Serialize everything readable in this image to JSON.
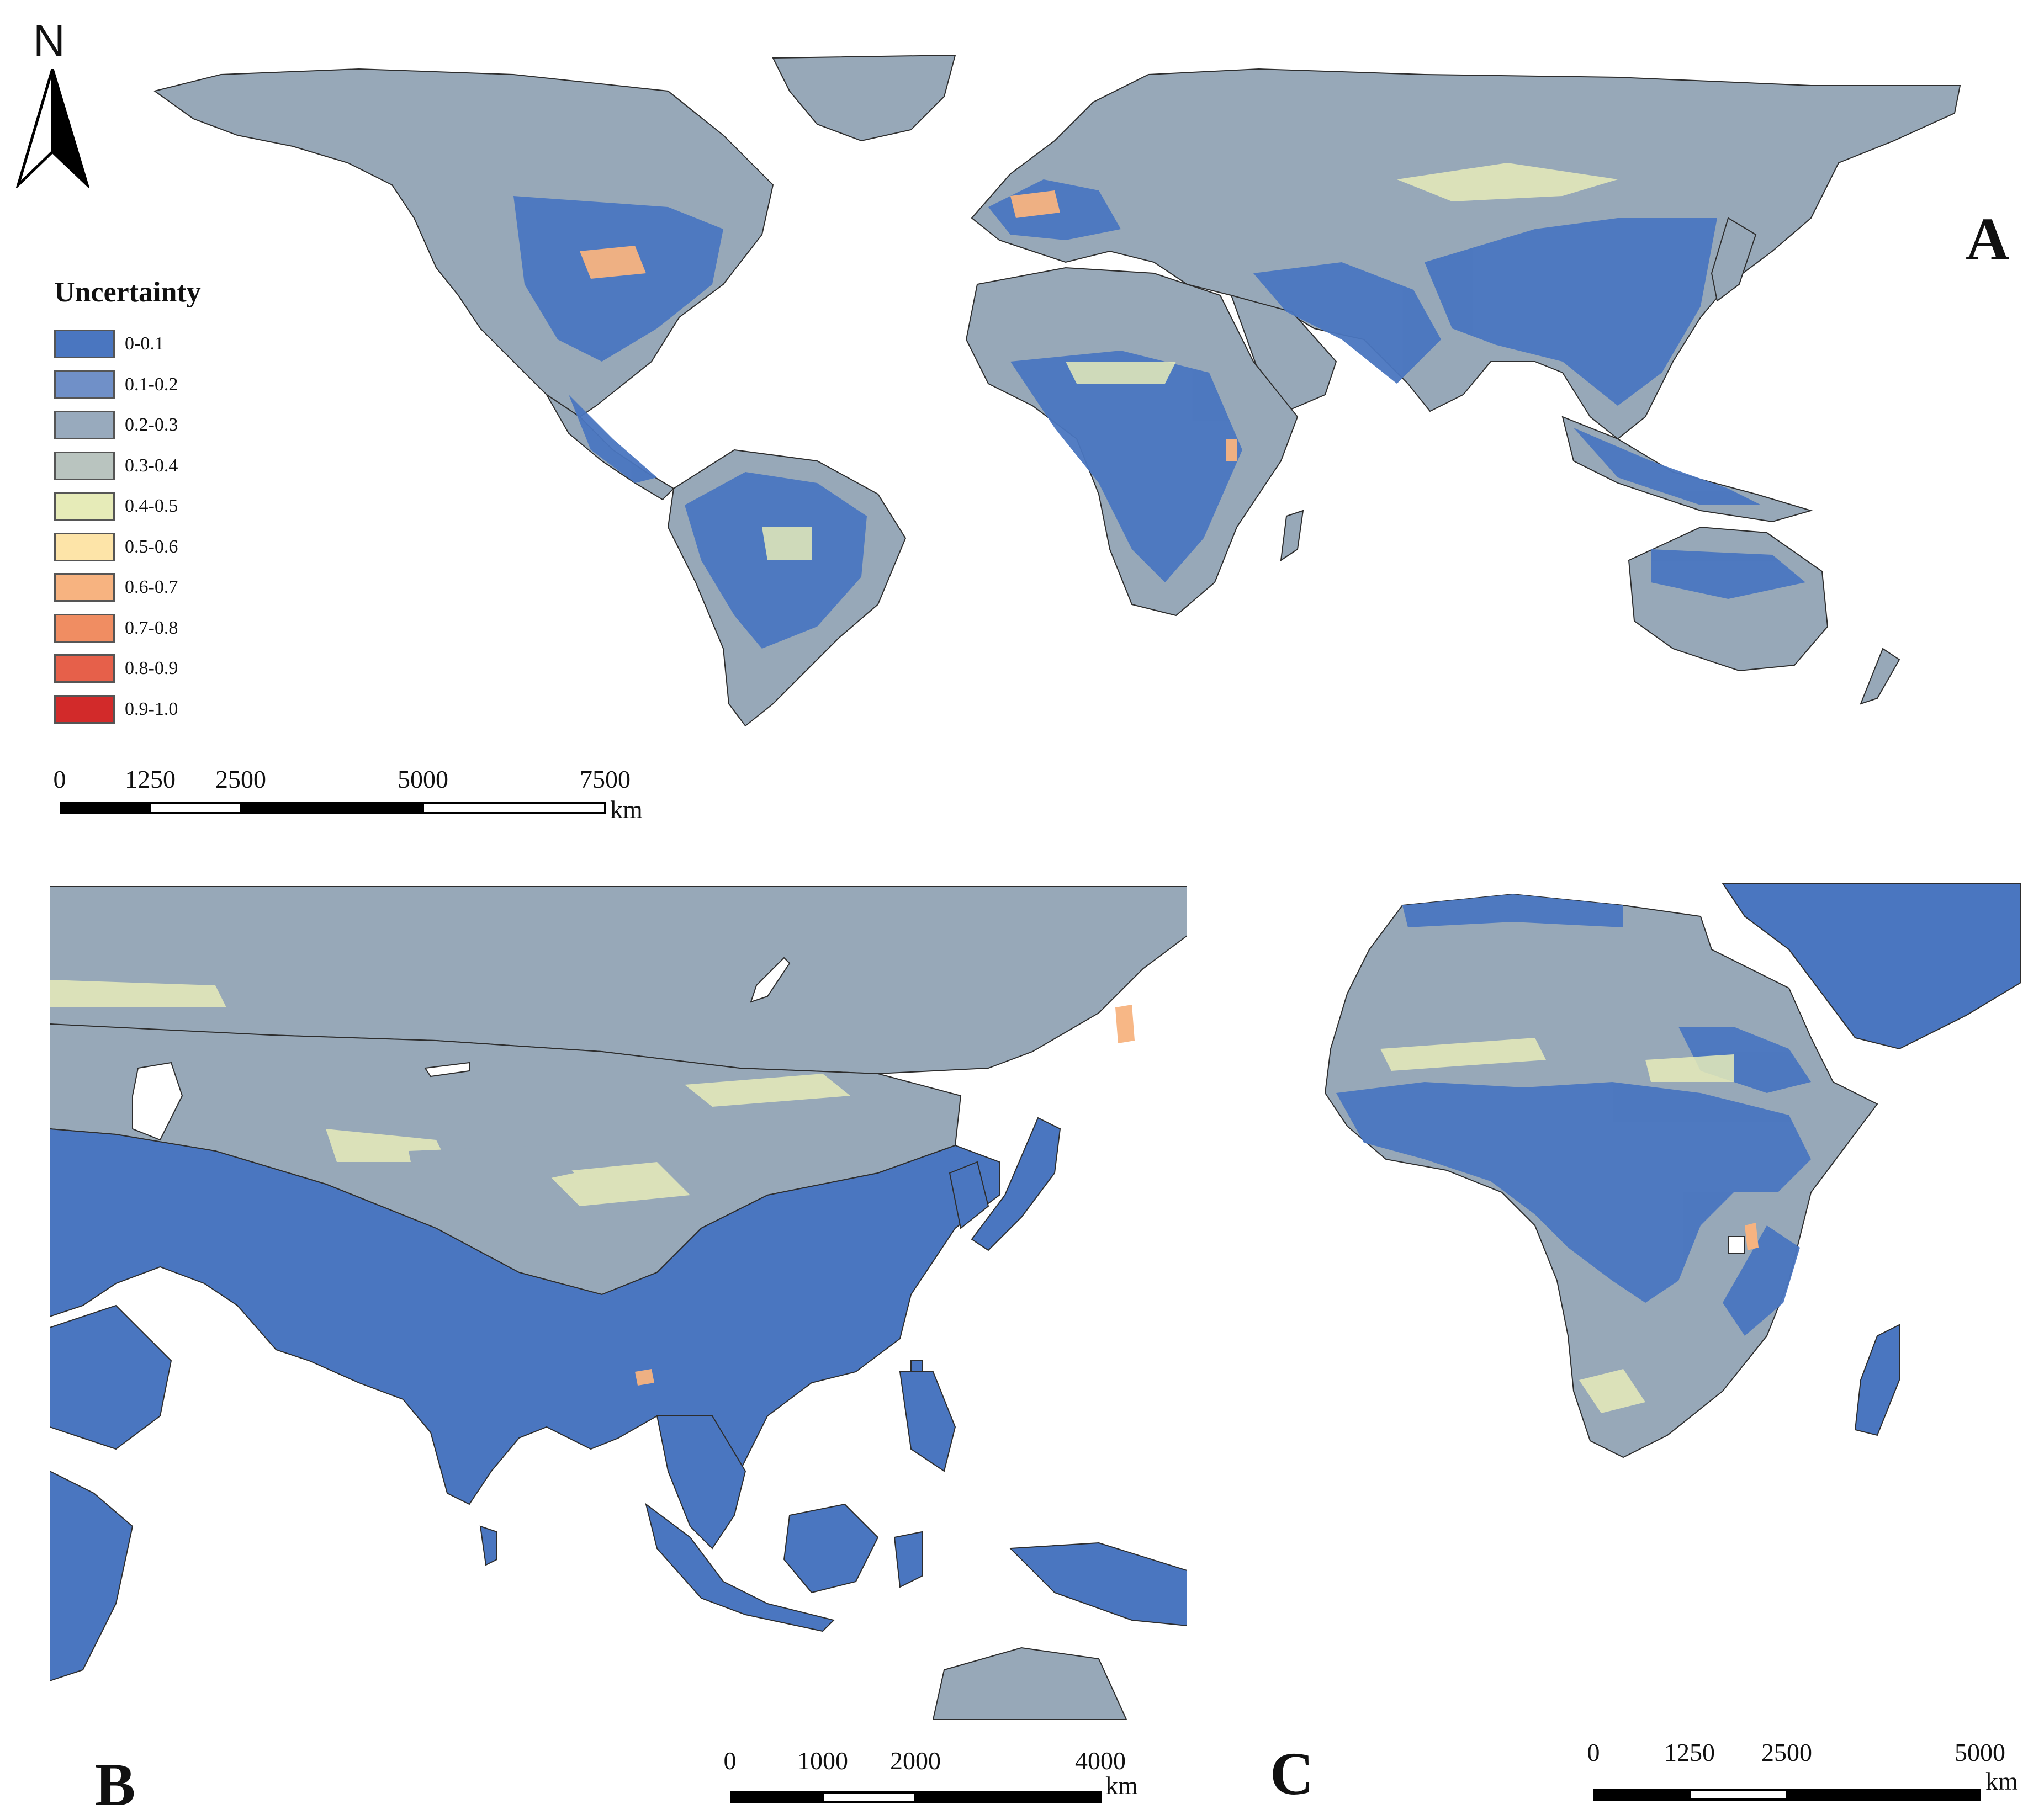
{
  "colors": {
    "ocean": "#ffffff",
    "land_base": "#97a8b8",
    "border": "#2d2d2d"
  },
  "north_arrow": {
    "label": "N",
    "icon": "north-arrow-icon"
  },
  "legend": {
    "title": "Uncertainty",
    "classes": [
      {
        "label": "0-0.1",
        "color": "#4a76c0"
      },
      {
        "label": "0.1-0.2",
        "color": "#7090c8"
      },
      {
        "label": "0.2-0.3",
        "color": "#98aabd"
      },
      {
        "label": "0.3-0.4",
        "color": "#b9c4bf"
      },
      {
        "label": "0.4-0.5",
        "color": "#e6ebb8"
      },
      {
        "label": "0.5-0.6",
        "color": "#fde4a8"
      },
      {
        "label": "0.6-0.7",
        "color": "#f7b380"
      },
      {
        "label": "0.7-0.8",
        "color": "#f08d62"
      },
      {
        "label": "0.8-0.9",
        "color": "#e6604a"
      },
      {
        "label": "0.9-1.0",
        "color": "#d22a2a"
      }
    ]
  },
  "panels": [
    {
      "letter": "A",
      "scalebar": {
        "ticks": [
          "0",
          "1250",
          "2500",
          "5000",
          "7500"
        ],
        "unit": "km"
      }
    },
    {
      "letter": "B",
      "scalebar": {
        "ticks": [
          "0",
          "1000",
          "2000",
          "4000"
        ],
        "unit": "km"
      }
    },
    {
      "letter": "C",
      "scalebar": {
        "ticks": [
          "0",
          "1250",
          "2500",
          "5000"
        ],
        "unit": "km"
      }
    }
  ]
}
